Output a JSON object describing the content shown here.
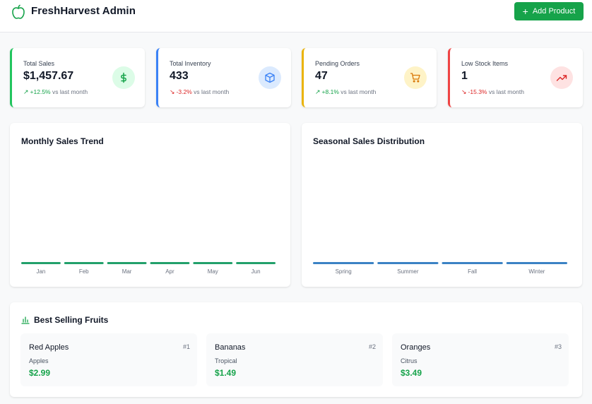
{
  "app": {
    "title": "FreshHarvest Admin",
    "brand_color": "#16a34a"
  },
  "header": {
    "add_button_label": "Add Product"
  },
  "stats": [
    {
      "label": "Total Sales",
      "value": "$1,457.67",
      "change": "+12.5%",
      "direction": "up",
      "suffix": "vs last month",
      "icon": "dollar-icon",
      "accent": "#22c55e"
    },
    {
      "label": "Total Inventory",
      "value": "433",
      "change": "-3.2%",
      "direction": "down",
      "suffix": "vs last month",
      "icon": "box-icon",
      "accent": "#3b82f6"
    },
    {
      "label": "Pending Orders",
      "value": "47",
      "change": "+8.1%",
      "direction": "up",
      "suffix": "vs last month",
      "icon": "cart-icon",
      "accent": "#eab308"
    },
    {
      "label": "Low Stock Items",
      "value": "1",
      "change": "-15.3%",
      "direction": "down",
      "suffix": "vs last month",
      "icon": "trending-up-icon",
      "accent": "#ef4444"
    }
  ],
  "chart_data": [
    {
      "type": "bar",
      "title": "Monthly Sales Trend",
      "categories": [
        "Jan",
        "Feb",
        "Mar",
        "Apr",
        "May",
        "Jun"
      ],
      "values": [
        0,
        0,
        0,
        0,
        0,
        0
      ],
      "color": "#22a06b",
      "grid": false
    },
    {
      "type": "bar",
      "title": "Seasonal Sales Distribution",
      "categories": [
        "Spring",
        "Summer",
        "Fall",
        "Winter"
      ],
      "values": [
        0,
        0,
        0,
        0
      ],
      "color": "#3b82c4",
      "grid": false
    }
  ],
  "best_selling": {
    "title": "Best Selling Fruits",
    "icon": "bar-chart-icon",
    "items": [
      {
        "name": "Red Apples",
        "rank": "#1",
        "category": "Apples",
        "price": "$2.99"
      },
      {
        "name": "Bananas",
        "rank": "#2",
        "category": "Tropical",
        "price": "$1.49"
      },
      {
        "name": "Oranges",
        "rank": "#3",
        "category": "Citrus",
        "price": "$3.49"
      }
    ]
  }
}
